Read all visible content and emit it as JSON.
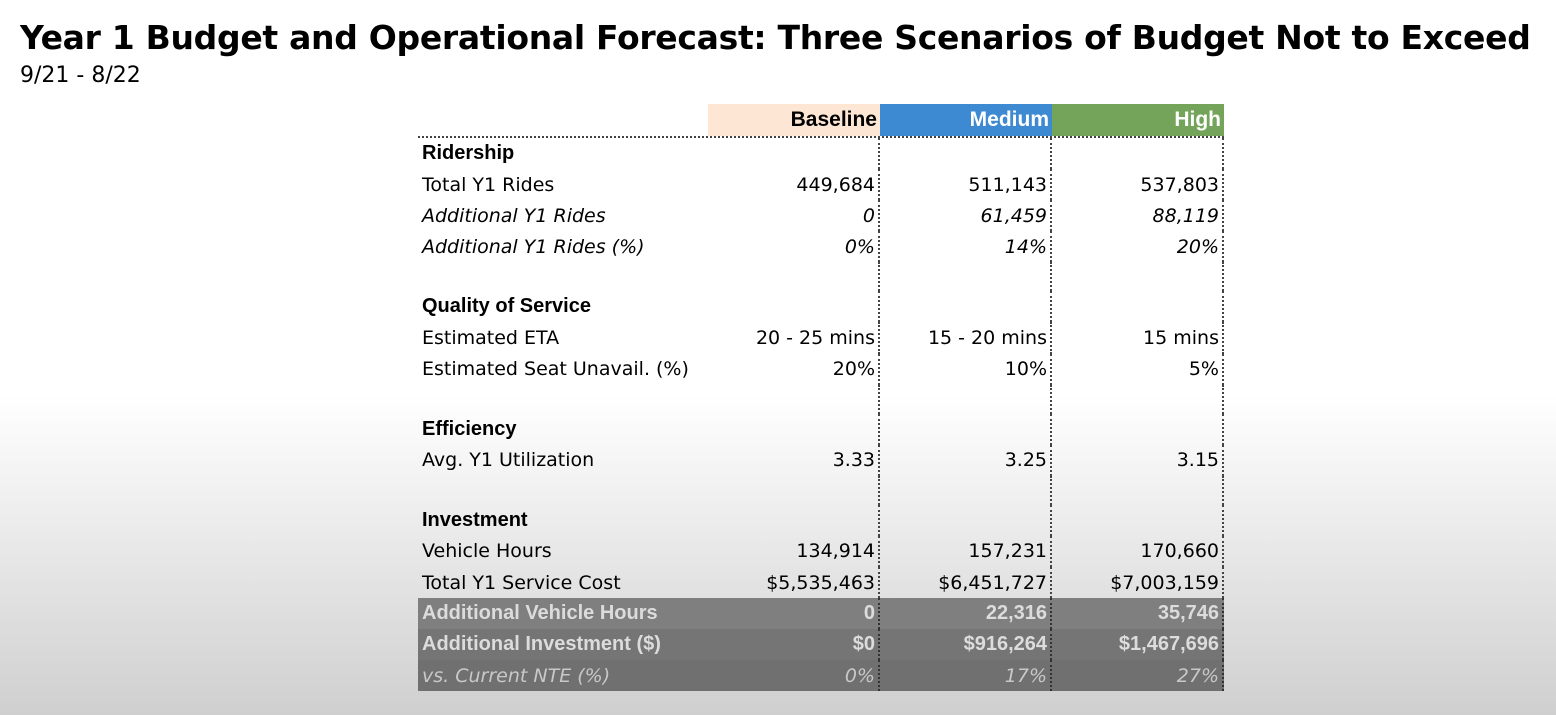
{
  "header": {
    "title": "Year 1 Budget and Operational Forecast: Three Scenarios of Budget Not to Exceed",
    "subtitle": "9/21 - 8/22"
  },
  "columns": [
    "Baseline",
    "Medium",
    "High"
  ],
  "colors": {
    "baseline_header": "#fde7d4",
    "medium_header": "#3d8ad3",
    "high_header": "#73a45a",
    "summary_fill": "#7f7f7f"
  },
  "sections": {
    "ridership": {
      "label": "Ridership",
      "total_rides": {
        "label": "Total Y1 Rides",
        "values": [
          "449,684",
          "511,143",
          "537,803"
        ]
      },
      "additional_rides": {
        "label": "Additional Y1 Rides",
        "values": [
          "0",
          "61,459",
          "88,119"
        ]
      },
      "additional_rides_pct": {
        "label": "Additional Y1 Rides (%)",
        "values": [
          "0%",
          "14%",
          "20%"
        ]
      }
    },
    "quality": {
      "label": "Quality of Service",
      "eta": {
        "label": "Estimated ETA",
        "values": [
          "20 - 25 mins",
          "15 - 20 mins",
          "15 mins"
        ]
      },
      "seat_unavail": {
        "label": "Estimated Seat Unavail. (%)",
        "values": [
          "20%",
          "10%",
          "5%"
        ]
      }
    },
    "efficiency": {
      "label": "Efficiency",
      "utilization": {
        "label": "Avg. Y1 Utilization",
        "values": [
          "3.33",
          "3.25",
          "3.15"
        ]
      }
    },
    "investment": {
      "label": "Investment",
      "vehicle_hours": {
        "label": "Vehicle Hours",
        "values": [
          "134,914",
          "157,231",
          "170,660"
        ]
      },
      "service_cost": {
        "label": "Total Y1 Service Cost",
        "values": [
          "$5,535,463",
          "$6,451,727",
          "$7,003,159"
        ]
      },
      "additional_vehicle_hours": {
        "label": "Additional Vehicle Hours",
        "values": [
          "0",
          "22,316",
          "35,746"
        ]
      },
      "additional_investment": {
        "label": "Additional Investment ($)",
        "values": [
          "$0",
          "$916,264",
          "$1,467,696"
        ]
      },
      "vs_current_nte": {
        "label": "vs. Current NTE (%)",
        "values": [
          "0%",
          "17%",
          "27%"
        ]
      }
    }
  }
}
